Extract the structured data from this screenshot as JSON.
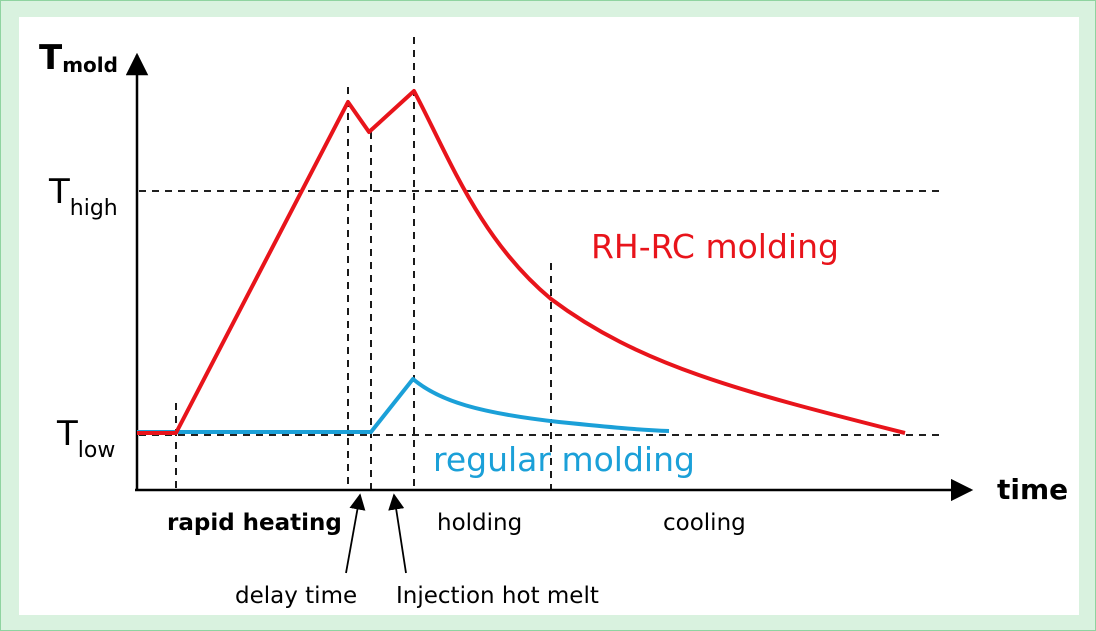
{
  "axes": {
    "y_main": "T",
    "y_sub": "mold",
    "x_label": "time"
  },
  "levels": {
    "high": {
      "main": "T",
      "sub": "high"
    },
    "low": {
      "main": "T",
      "sub": "low"
    }
  },
  "curves": {
    "rhrc": {
      "label": "RH-RC molding",
      "color": "#e8141b"
    },
    "regular": {
      "label": "regular molding",
      "color": "#1ba0d8"
    }
  },
  "phases": {
    "rapid_heating": "rapid heating",
    "holding": "holding",
    "cooling": "cooling"
  },
  "annotations": {
    "delay_time": "delay time",
    "injection": "Injection hot melt"
  }
}
